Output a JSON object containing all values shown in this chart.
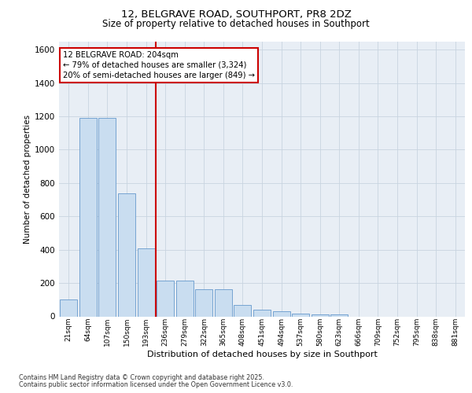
{
  "title_line1": "12, BELGRAVE ROAD, SOUTHPORT, PR8 2DZ",
  "title_line2": "Size of property relative to detached houses in Southport",
  "xlabel": "Distribution of detached houses by size in Southport",
  "ylabel": "Number of detached properties",
  "categories": [
    "21sqm",
    "64sqm",
    "107sqm",
    "150sqm",
    "193sqm",
    "236sqm",
    "279sqm",
    "322sqm",
    "365sqm",
    "408sqm",
    "451sqm",
    "494sqm",
    "537sqm",
    "580sqm",
    "623sqm",
    "666sqm",
    "709sqm",
    "752sqm",
    "795sqm",
    "838sqm",
    "881sqm"
  ],
  "values": [
    100,
    1190,
    1190,
    740,
    410,
    215,
    215,
    165,
    165,
    70,
    40,
    30,
    15,
    10,
    10,
    0,
    0,
    0,
    0,
    0,
    0
  ],
  "bar_color": "#c9ddf0",
  "bar_edgecolor": "#6699cc",
  "vline_color": "#cc0000",
  "annotation_text": "12 BELGRAVE ROAD: 204sqm\n← 79% of detached houses are smaller (3,324)\n20% of semi-detached houses are larger (849) →",
  "annotation_box_edgecolor": "#cc0000",
  "annotation_text_color": "#000000",
  "ylim": [
    0,
    1650
  ],
  "yticks": [
    0,
    200,
    400,
    600,
    800,
    1000,
    1200,
    1400,
    1600
  ],
  "grid_color": "#c8d4e0",
  "bg_color": "#e8eef5",
  "footer_line1": "Contains HM Land Registry data © Crown copyright and database right 2025.",
  "footer_line2": "Contains public sector information licensed under the Open Government Licence v3.0."
}
